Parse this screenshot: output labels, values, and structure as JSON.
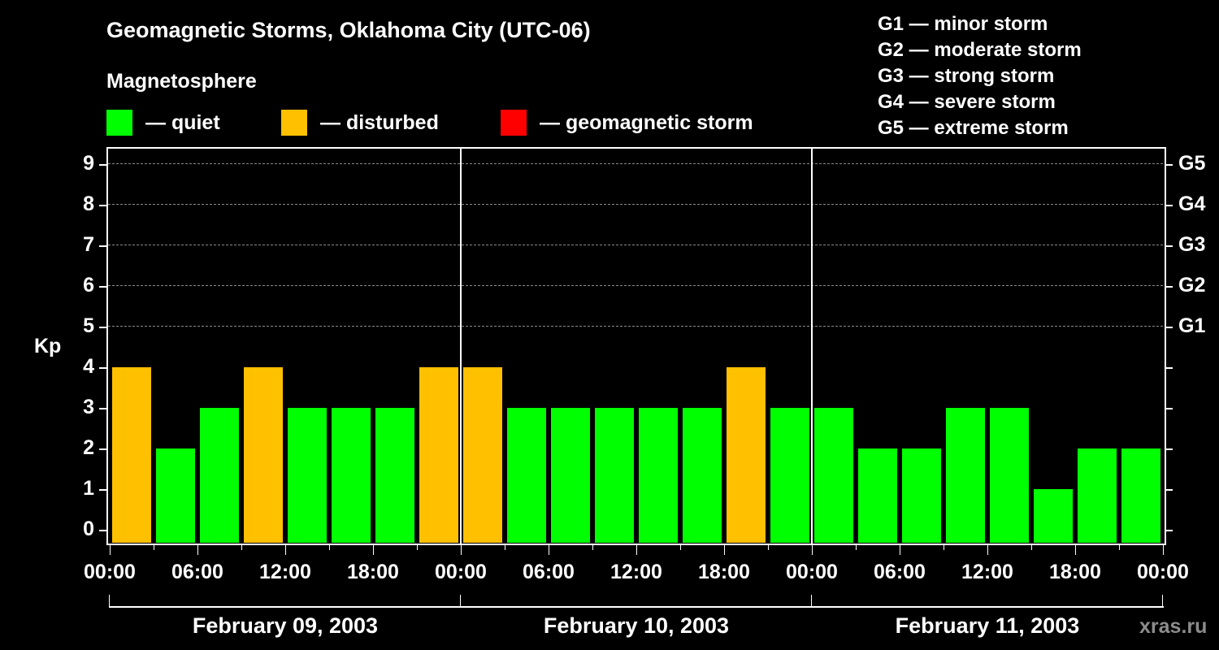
{
  "title": "Geomagnetic Storms, Oklahoma City (UTC-06)",
  "subtitle": "Magnetosphere",
  "legend": [
    {
      "label": "— quiet",
      "color": "#00ff00"
    },
    {
      "label": "— disturbed",
      "color": "#ffc000"
    },
    {
      "label": "— geomagnetic storm",
      "color": "#ff0000"
    }
  ],
  "g_legend": [
    "G1 — minor storm",
    "G2 — moderate storm",
    "G3 — strong storm",
    "G4 — severe storm",
    "G5 — extreme storm"
  ],
  "y_axis": {
    "label": "Kp",
    "ticks": [
      "0",
      "1",
      "2",
      "3",
      "4",
      "5",
      "6",
      "7",
      "8",
      "9"
    ]
  },
  "g_axis": {
    "ticks": [
      "G1",
      "G2",
      "G3",
      "G4",
      "G5"
    ]
  },
  "x_axis": {
    "ticks": [
      "00:00",
      "06:00",
      "12:00",
      "18:00",
      "00:00",
      "06:00",
      "12:00",
      "18:00",
      "00:00",
      "06:00",
      "12:00",
      "18:00",
      "00:00"
    ]
  },
  "days": [
    "February 09, 2003",
    "February 10, 2003",
    "February 11, 2003"
  ],
  "watermark": "xras.ru",
  "chart_data": {
    "type": "bar",
    "title": "Geomagnetic Storms, Oklahoma City (UTC-06)",
    "xlabel": "",
    "ylabel": "Kp",
    "ylim": [
      0,
      9
    ],
    "grid": true,
    "categories": [
      "Feb 09 00:00",
      "Feb 09 03:00",
      "Feb 09 06:00",
      "Feb 09 09:00",
      "Feb 09 12:00",
      "Feb 09 15:00",
      "Feb 09 18:00",
      "Feb 09 21:00",
      "Feb 10 00:00",
      "Feb 10 03:00",
      "Feb 10 06:00",
      "Feb 10 09:00",
      "Feb 10 12:00",
      "Feb 10 15:00",
      "Feb 10 18:00",
      "Feb 10 21:00",
      "Feb 11 00:00",
      "Feb 11 03:00",
      "Feb 11 06:00",
      "Feb 11 09:00",
      "Feb 11 12:00",
      "Feb 11 15:00",
      "Feb 11 18:00",
      "Feb 11 21:00"
    ],
    "values": [
      4,
      2,
      3,
      4,
      3,
      3,
      3,
      4,
      4,
      3,
      3,
      3,
      3,
      3,
      4,
      3,
      3,
      2,
      2,
      3,
      3,
      1,
      2,
      2
    ],
    "status": [
      "disturbed",
      "quiet",
      "quiet",
      "disturbed",
      "quiet",
      "quiet",
      "quiet",
      "disturbed",
      "disturbed",
      "quiet",
      "quiet",
      "quiet",
      "quiet",
      "quiet",
      "disturbed",
      "quiet",
      "quiet",
      "quiet",
      "quiet",
      "quiet",
      "quiet",
      "quiet",
      "quiet",
      "quiet"
    ],
    "colors": {
      "quiet": "#00ff00",
      "disturbed": "#ffc000",
      "storm": "#ff0000"
    },
    "secondary_axis": {
      "G1": 5,
      "G2": 6,
      "G3": 7,
      "G4": 8,
      "G5": 9
    },
    "legend": [
      "quiet",
      "disturbed",
      "geomagnetic storm"
    ]
  }
}
